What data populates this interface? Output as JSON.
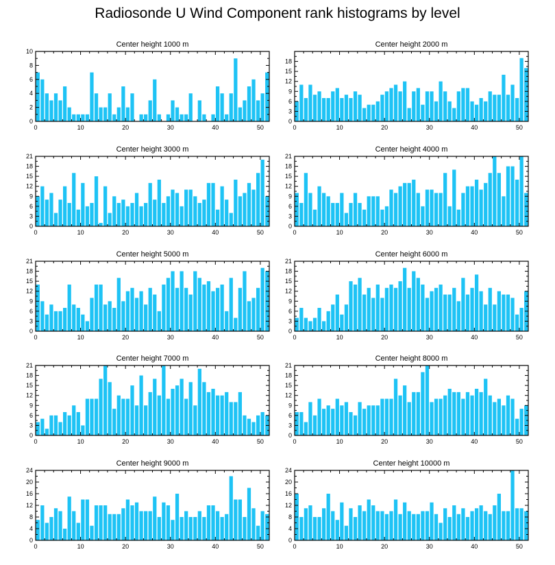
{
  "figure": {
    "title": "Radiosonde U Wind Component rank histograms by level",
    "bar_color": "#1EC3F5"
  },
  "chart_data": [
    {
      "type": "bar",
      "title": "Center height 1000 m",
      "xlim": [
        0,
        52
      ],
      "xticks": [
        0,
        10,
        20,
        30,
        40,
        50
      ],
      "ylim": [
        0,
        10
      ],
      "yticks": [
        0,
        2,
        4,
        6,
        8,
        10
      ],
      "values": [
        7,
        6,
        4,
        3,
        4,
        3,
        5,
        2,
        1,
        1,
        1,
        1,
        7,
        4,
        2,
        2,
        4,
        1,
        2,
        5,
        2,
        4,
        0,
        1,
        1,
        3,
        6,
        1,
        0,
        1,
        3,
        2,
        1,
        1,
        4,
        0,
        3,
        1,
        0,
        1,
        5,
        4,
        1,
        4,
        9,
        2,
        3,
        5,
        6,
        3,
        4,
        7
      ]
    },
    {
      "type": "bar",
      "title": "Center height 2000 m",
      "xlim": [
        0,
        52
      ],
      "xticks": [
        0,
        10,
        20,
        30,
        40,
        50
      ],
      "ylim": [
        0,
        21
      ],
      "yticks": [
        0,
        3,
        6,
        9,
        12,
        15,
        18
      ],
      "values": [
        6,
        11,
        7,
        11,
        8,
        9,
        7,
        7,
        9,
        10,
        7,
        8,
        7,
        9,
        8,
        4,
        5,
        5,
        6,
        8,
        9,
        10,
        11,
        9,
        12,
        4,
        9,
        10,
        5,
        9,
        9,
        6,
        12,
        9,
        6,
        4,
        9,
        10,
        10,
        6,
        5,
        7,
        6,
        9,
        8,
        8,
        14,
        8,
        11,
        7,
        19,
        16
      ]
    },
    {
      "type": "bar",
      "title": "Center height 3000 m",
      "xlim": [
        0,
        52
      ],
      "xticks": [
        0,
        10,
        20,
        30,
        40,
        50
      ],
      "ylim": [
        0,
        21
      ],
      "yticks": [
        0,
        3,
        6,
        9,
        12,
        15,
        18,
        21
      ],
      "values": [
        9,
        12,
        8,
        10,
        4,
        8,
        12,
        7,
        16,
        5,
        13,
        6,
        7,
        15,
        1,
        12,
        4,
        9,
        7,
        8,
        6,
        7,
        10,
        6,
        7,
        13,
        8,
        14,
        7,
        9,
        11,
        10,
        6,
        11,
        11,
        9,
        7,
        8,
        13,
        13,
        5,
        12,
        8,
        4,
        14,
        9,
        10,
        13,
        11,
        16,
        20,
        9
      ]
    },
    {
      "type": "bar",
      "title": "Center height 4000 m",
      "xlim": [
        0,
        52
      ],
      "xticks": [
        0,
        10,
        20,
        30,
        40,
        50
      ],
      "ylim": [
        0,
        21
      ],
      "yticks": [
        0,
        3,
        6,
        9,
        12,
        15,
        18,
        21
      ],
      "values": [
        10,
        7,
        16,
        10,
        5,
        12,
        10,
        9,
        7,
        7,
        10,
        4,
        7,
        10,
        7,
        5,
        9,
        9,
        9,
        5,
        6,
        11,
        10,
        12,
        13,
        13,
        14,
        10,
        6,
        11,
        11,
        10,
        10,
        16,
        6,
        17,
        5,
        10,
        12,
        12,
        14,
        11,
        13,
        16,
        21,
        16,
        9,
        18,
        18,
        14,
        21,
        10
      ]
    },
    {
      "type": "bar",
      "title": "Center height 5000 m",
      "xlim": [
        0,
        52
      ],
      "xticks": [
        0,
        10,
        20,
        30,
        40,
        50
      ],
      "ylim": [
        0,
        21
      ],
      "yticks": [
        0,
        3,
        6,
        9,
        12,
        15,
        18,
        21
      ],
      "values": [
        14,
        9,
        5,
        8,
        6,
        6,
        7,
        14,
        8,
        7,
        5,
        3,
        10,
        14,
        14,
        8,
        9,
        7,
        16,
        9,
        12,
        13,
        10,
        12,
        8,
        13,
        11,
        6,
        14,
        16,
        18,
        13,
        18,
        13,
        11,
        18,
        16,
        14,
        15,
        12,
        13,
        14,
        6,
        16,
        4,
        13,
        18,
        9,
        10,
        13,
        19,
        18
      ]
    },
    {
      "type": "bar",
      "title": "Center height 6000 m",
      "xlim": [
        0,
        52
      ],
      "xticks": [
        0,
        10,
        20,
        30,
        40,
        50
      ],
      "ylim": [
        0,
        21
      ],
      "yticks": [
        0,
        3,
        6,
        9,
        12,
        15,
        18,
        21
      ],
      "values": [
        4,
        7,
        4,
        3,
        4,
        7,
        3,
        6,
        8,
        11,
        5,
        8,
        15,
        14,
        16,
        11,
        13,
        10,
        14,
        10,
        13,
        14,
        13,
        15,
        19,
        13,
        18,
        16,
        14,
        10,
        12,
        13,
        14,
        11,
        11,
        13,
        9,
        16,
        11,
        13,
        17,
        12,
        8,
        13,
        8,
        12,
        11,
        11,
        10,
        5,
        7,
        12
      ]
    },
    {
      "type": "bar",
      "title": "Center height 7000 m",
      "xlim": [
        0,
        52
      ],
      "xticks": [
        0,
        10,
        20,
        30,
        40,
        50
      ],
      "ylim": [
        0,
        21
      ],
      "yticks": [
        0,
        3,
        6,
        9,
        12,
        15,
        18,
        21
      ],
      "values": [
        4,
        5,
        2,
        6,
        6,
        4,
        7,
        6,
        9,
        7,
        3,
        11,
        11,
        11,
        17,
        21,
        16,
        8,
        12,
        11,
        11,
        15,
        9,
        18,
        9,
        13,
        17,
        12,
        21,
        11,
        14,
        15,
        17,
        11,
        16,
        9,
        20,
        16,
        13,
        14,
        12,
        12,
        13,
        10,
        10,
        13,
        6,
        5,
        4,
        6,
        7,
        6
      ]
    },
    {
      "type": "bar",
      "title": "Center height 8000 m",
      "xlim": [
        0,
        52
      ],
      "xticks": [
        0,
        10,
        20,
        30,
        40,
        50
      ],
      "ylim": [
        0,
        21
      ],
      "yticks": [
        0,
        3,
        6,
        9,
        12,
        15,
        18,
        21
      ],
      "values": [
        7,
        7,
        4,
        10,
        6,
        11,
        8,
        9,
        8,
        11,
        9,
        10,
        7,
        6,
        10,
        8,
        9,
        9,
        9,
        11,
        11,
        11,
        17,
        12,
        15,
        10,
        13,
        13,
        19,
        21,
        10,
        11,
        11,
        12,
        14,
        13,
        13,
        11,
        13,
        12,
        14,
        13,
        17,
        12,
        10,
        11,
        9,
        12,
        11,
        5,
        8,
        9
      ]
    },
    {
      "type": "bar",
      "title": "Center height 9000 m",
      "xlim": [
        0,
        52
      ],
      "xticks": [
        0,
        10,
        20,
        30,
        40,
        50
      ],
      "ylim": [
        0,
        24
      ],
      "yticks": [
        0,
        4,
        8,
        12,
        16,
        20,
        24
      ],
      "values": [
        7,
        12,
        6,
        8,
        11,
        10,
        4,
        15,
        10,
        6,
        14,
        14,
        5,
        12,
        12,
        12,
        9,
        9,
        9,
        11,
        14,
        12,
        13,
        10,
        10,
        10,
        15,
        8,
        13,
        12,
        7,
        16,
        8,
        10,
        8,
        8,
        10,
        8,
        12,
        12,
        10,
        8,
        9,
        22,
        14,
        14,
        8,
        18,
        11,
        5,
        10,
        9
      ]
    },
    {
      "type": "bar",
      "title": "Center height 10000 m",
      "xlim": [
        0,
        52
      ],
      "xticks": [
        0,
        10,
        20,
        30,
        40,
        50
      ],
      "ylim": [
        0,
        24
      ],
      "yticks": [
        0,
        4,
        8,
        12,
        16,
        20,
        24
      ],
      "values": [
        16,
        8,
        11,
        12,
        8,
        8,
        11,
        16,
        10,
        7,
        13,
        5,
        11,
        8,
        12,
        10,
        14,
        12,
        10,
        10,
        9,
        10,
        14,
        9,
        13,
        10,
        9,
        9,
        10,
        10,
        13,
        9,
        6,
        11,
        8,
        12,
        9,
        11,
        8,
        10,
        11,
        12,
        10,
        9,
        12,
        16,
        10,
        10,
        24,
        11,
        11,
        10
      ]
    }
  ]
}
